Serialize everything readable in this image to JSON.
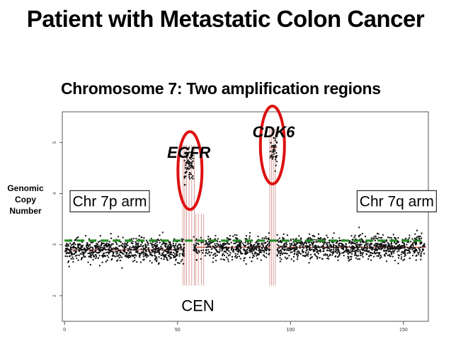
{
  "chart_data": {
    "type": "scatter",
    "title": "Patient with Metastatic Colon Cancer",
    "subtitle": "Chromosome 7: Two amplification regions",
    "ylabel": "Genomic Copy Number",
    "xlabel": "",
    "x_ticks": [
      "0",
      "50",
      "100",
      "150"
    ],
    "xlim": [
      -1,
      161
    ],
    "ylim": [
      1.5,
      5.6
    ],
    "y_ticks": [
      "2",
      "3",
      "4",
      "5"
    ],
    "baseline": 3.0,
    "reference_line": {
      "value": 3.08,
      "style": "dashed",
      "color": "#228b22"
    },
    "segments": [
      {
        "x": [
          0,
          53
        ],
        "value": 2.9
      },
      {
        "x": [
          53,
          57
        ],
        "value": 4.6
      },
      {
        "x": [
          57,
          91
        ],
        "value": 2.95
      },
      {
        "x": [
          91,
          94
        ],
        "value": 4.9
      },
      {
        "x": [
          94,
          160
        ],
        "value": 2.95
      }
    ],
    "annotations": [
      {
        "label": "EGFR",
        "x": 55,
        "y": 4.7,
        "style": "gene"
      },
      {
        "label": "CDK6",
        "x": 92.5,
        "y": 5.1,
        "style": "gene"
      },
      {
        "label": "Chr 7p arm",
        "x": 20,
        "y": 3.85,
        "style": "box"
      },
      {
        "label": "Chr 7q arm",
        "x": 147,
        "y": 3.85,
        "style": "box"
      },
      {
        "label": "CEN",
        "x": 59,
        "y": 1.7,
        "style": "text"
      }
    ],
    "highlights": [
      {
        "label": "EGFR",
        "x": 55.5,
        "y": 4.45
      },
      {
        "label": "CDK6",
        "x": 92,
        "y": 4.95
      }
    ],
    "grid": false,
    "legend": "none"
  },
  "colors": {
    "points": "#111111",
    "segments": "#b23a2e",
    "reference": "#228b22",
    "highlight": "#dd1111"
  }
}
